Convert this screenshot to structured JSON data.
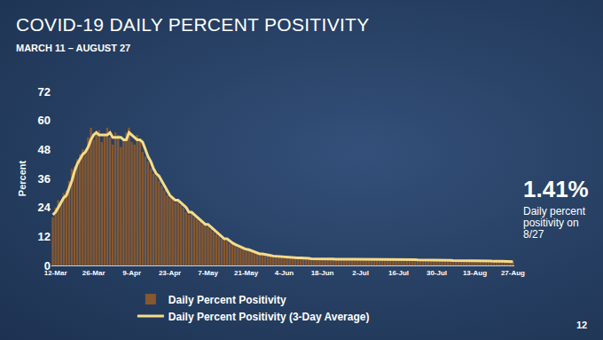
{
  "chart_data": {
    "type": "bar",
    "title": "COVID-19 DAILY PERCENT POSITIVITY",
    "subtitle": "MARCH 11 – AUGUST 27",
    "y_label": "Percent",
    "categories": [
      null,
      "12-Mar",
      null,
      null,
      null,
      null,
      null,
      null,
      null,
      null,
      null,
      null,
      null,
      null,
      null,
      "26-Mar",
      null,
      null,
      null,
      null,
      null,
      null,
      null,
      null,
      null,
      null,
      null,
      null,
      null,
      "9-Apr",
      null,
      null,
      null,
      null,
      null,
      null,
      null,
      null,
      null,
      null,
      null,
      null,
      null,
      "23-Apr",
      null,
      null,
      null,
      null,
      null,
      null,
      null,
      null,
      null,
      null,
      null,
      null,
      null,
      "7-May",
      null,
      null,
      null,
      null,
      null,
      null,
      null,
      null,
      null,
      null,
      null,
      null,
      null,
      "21-May",
      null,
      null,
      null,
      null,
      null,
      null,
      null,
      null,
      null,
      null,
      null,
      null,
      null,
      "4-Jun",
      null,
      null,
      null,
      null,
      null,
      null,
      null,
      null,
      null,
      null,
      null,
      null,
      null,
      "18-Jun",
      null,
      null,
      null,
      null,
      null,
      null,
      null,
      null,
      null,
      null,
      null,
      null,
      null,
      "2-Jul",
      null,
      null,
      null,
      null,
      null,
      null,
      null,
      null,
      null,
      null,
      null,
      null,
      null,
      "16-Jul",
      null,
      null,
      null,
      null,
      null,
      null,
      null,
      null,
      null,
      null,
      null,
      null,
      null,
      "30-Jul",
      null,
      null,
      null,
      null,
      null,
      null,
      null,
      null,
      null,
      null,
      null,
      null,
      null,
      "13-Aug",
      null,
      null,
      null,
      null,
      null,
      null,
      null,
      null,
      null,
      null,
      null,
      null,
      null,
      "27-Aug"
    ],
    "series": [
      {
        "name": "Daily Percent Positivity",
        "type": "bar",
        "color": "#8b5a2e",
        "values": [
          20,
          24,
          27,
          26,
          30,
          31,
          35,
          40,
          41,
          44,
          46,
          48,
          47,
          53,
          57,
          52,
          55,
          56,
          51,
          54,
          57,
          53,
          50,
          55,
          54,
          49,
          52,
          55,
          57,
          51,
          50,
          54,
          52,
          47,
          45,
          43,
          40,
          38,
          37,
          35,
          33,
          31,
          29,
          28,
          28,
          26,
          27,
          25,
          24,
          22,
          21,
          22,
          20,
          19,
          18,
          17,
          17,
          16,
          15,
          14,
          13,
          12,
          11,
          11,
          10,
          9,
          9,
          8,
          7.5,
          7,
          7,
          6,
          6.5,
          5.5,
          5,
          5,
          4.5,
          4.8,
          4.2,
          4,
          4,
          3.8,
          3.6,
          3.5,
          3.8,
          3.4,
          3.2,
          3.5,
          3.1,
          3,
          3.3,
          3.1,
          2.9,
          3,
          2.8,
          2.7,
          3,
          2.9,
          2.6,
          2.8,
          2.7,
          2.9,
          2.6,
          2.5,
          2.8,
          2.7,
          2.4,
          2.6,
          2.5,
          2.7,
          2.6,
          2.4,
          2.5,
          2.3,
          2.6,
          2.4,
          2.2,
          2.5,
          2.6,
          2.7,
          2.4,
          2.3,
          2.5,
          2.6,
          2.4,
          2.3,
          2.7,
          2.5,
          2.4,
          2.6,
          2.3,
          2.5,
          2.4,
          2.2,
          2.3,
          2.5,
          2.1,
          2.2,
          2.4,
          2.3,
          2.1,
          2.2,
          2.0,
          2.1,
          2.3,
          1.9,
          2.0,
          2.2,
          1.8,
          2.0,
          2.1,
          1.9,
          1.8,
          2.0,
          1.9,
          1.7,
          1.8,
          2.0,
          1.9,
          1.7,
          1.8,
          1.6,
          1.9,
          1.8,
          1.7,
          1.6,
          1.9,
          1.8,
          1.6,
          1.41
        ]
      },
      {
        "name": "Daily Percent Positivity (3-Day Average)",
        "type": "line",
        "color": "#f6dc8a",
        "values": [
          21,
          22,
          24,
          26,
          28,
          29,
          32,
          35,
          39,
          42,
          44,
          46,
          47,
          49,
          52,
          54,
          55,
          54,
          54,
          54,
          54,
          55,
          53,
          53,
          53,
          53,
          52,
          52,
          55,
          54,
          53,
          52,
          52,
          51,
          48,
          45,
          43,
          40,
          38,
          37,
          35,
          33,
          31,
          29,
          28,
          27,
          27,
          26,
          25,
          24,
          22,
          22,
          21,
          20,
          19,
          18,
          17,
          17,
          16,
          15,
          14,
          13,
          12,
          11,
          11,
          10,
          9.3,
          8.7,
          8.2,
          7.5,
          7.2,
          6.7,
          6.5,
          6,
          5.7,
          5.2,
          4.8,
          4.8,
          4.5,
          4.3,
          4.1,
          3.9,
          3.8,
          3.6,
          3.6,
          3.6,
          3.5,
          3.4,
          3.3,
          3.2,
          3.1,
          3.1,
          3.1,
          3,
          2.9,
          2.8,
          2.8,
          2.9,
          2.8,
          2.8,
          2.7,
          2.8,
          2.7,
          2.7,
          2.6,
          2.7,
          2.6,
          2.6,
          2.5,
          2.6,
          2.6,
          2.6,
          2.5,
          2.4,
          2.5,
          2.4,
          2.4,
          2.4,
          2.4,
          2.6,
          2.6,
          2.5,
          2.4,
          2.5,
          2.5,
          2.4,
          2.5,
          2.5,
          2.5,
          2.5,
          2.4,
          2.5,
          2.4,
          2.4,
          2.3,
          2.3,
          2.3,
          2.3,
          2.2,
          2.3,
          2.3,
          2.2,
          2.1,
          2.1,
          2.1,
          2.1,
          2.1,
          2.0,
          2.0,
          2.0,
          2.0,
          2.0,
          1.9,
          1.9,
          1.9,
          1.9,
          1.8,
          1.8,
          1.9,
          1.9,
          1.8,
          1.8,
          1.7,
          1.8,
          1.7,
          1.7,
          1.7,
          1.8,
          1.8,
          1.6
        ]
      }
    ],
    "ylim": [
      0,
      72
    ],
    "yticks": [
      0,
      12,
      24,
      36,
      48,
      60,
      72
    ],
    "grid": false,
    "legend": "bottom",
    "annotations": [
      {
        "text": "1.41%"
      },
      {
        "text": "Daily percent positivity on 8/27"
      }
    ],
    "page_number": "12"
  }
}
